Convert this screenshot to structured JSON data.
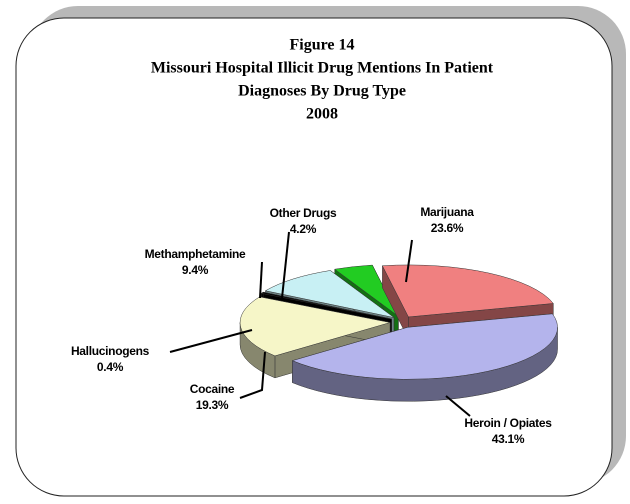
{
  "chart_data": {
    "type": "pie3d",
    "title": [
      "Figure 14",
      "Missouri Hospital Illicit Drug Mentions In Patient",
      "Diagnoses By Drug Type",
      "2008"
    ],
    "categories": [
      "Marijuana",
      "Heroin / Opiates",
      "Cocaine",
      "Hallucinogens",
      "Methamphetamine",
      "Other Drugs"
    ],
    "values": [
      23.6,
      43.1,
      19.3,
      0.4,
      9.4,
      4.2
    ],
    "value_labels": [
      "23.6%",
      "43.1%",
      "19.3%",
      "0.4%",
      "9.4%",
      "4.2%"
    ],
    "colors": [
      "#f08080",
      "#b4b4ec",
      "#f6f6c8",
      "#000000",
      "#c8f0f4",
      "#22cc22"
    ]
  }
}
